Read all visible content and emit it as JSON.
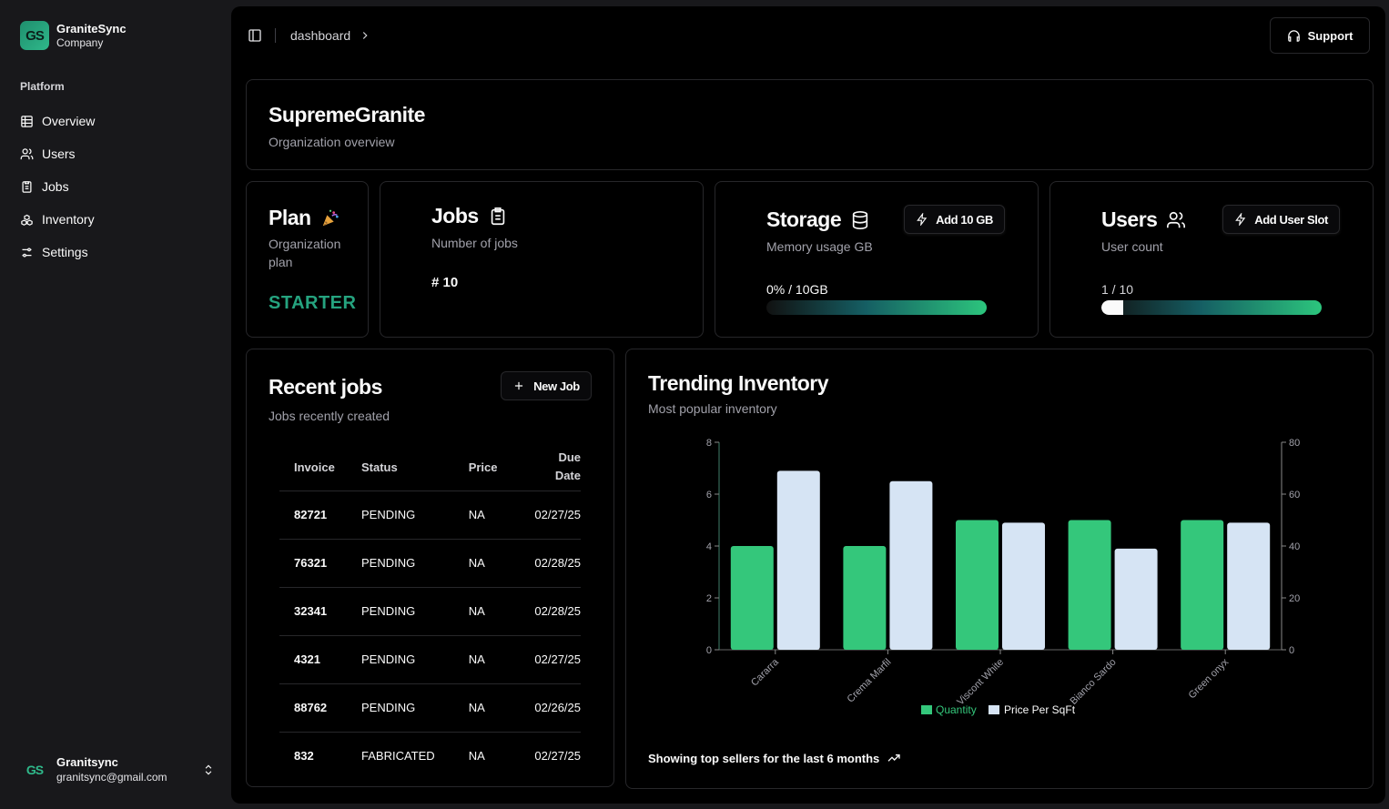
{
  "sidebar": {
    "brand_logo": "GS",
    "brand_name": "GraniteSync",
    "brand_sub": "Company",
    "group_label": "Platform",
    "items": [
      {
        "label": "Overview",
        "icon": "table-icon"
      },
      {
        "label": "Users",
        "icon": "users-icon"
      },
      {
        "label": "Jobs",
        "icon": "clipboard-icon"
      },
      {
        "label": "Inventory",
        "icon": "boxes-icon"
      },
      {
        "label": "Settings",
        "icon": "sliders-icon"
      }
    ],
    "user": {
      "logo": "GS",
      "name": "Granitsync",
      "email": "granitsync@gmail.com"
    }
  },
  "header": {
    "breadcrumb": "dashboard",
    "support_label": "Support"
  },
  "org": {
    "title": "SupremeGranite",
    "subtitle": "Organization overview"
  },
  "plan": {
    "title": "Plan",
    "subtitle": "Organization plan",
    "value": "STARTER"
  },
  "jobs": {
    "title": "Jobs",
    "subtitle": "Number of jobs",
    "count": "# 10"
  },
  "storage": {
    "title": "Storage",
    "subtitle": "Memory usage GB",
    "add_label": "Add 10 GB",
    "usage": "0% / 10GB",
    "fraction": 0
  },
  "users": {
    "title": "Users",
    "subtitle": "User count",
    "add_label": "Add User Slot",
    "usage": "1 / 10",
    "fraction": 0.1
  },
  "recent": {
    "title": "Recent jobs",
    "subtitle": "Jobs recently created",
    "new_job_label": "New Job",
    "columns": {
      "invoice": "Invoice",
      "status": "Status",
      "price": "Price",
      "due_line1": "Due",
      "due_line2": "Date"
    },
    "rows": [
      {
        "invoice": "82721",
        "status": "PENDING",
        "price": "NA",
        "due": "02/27/25"
      },
      {
        "invoice": "76321",
        "status": "PENDING",
        "price": "NA",
        "due": "02/28/25"
      },
      {
        "invoice": "32341",
        "status": "PENDING",
        "price": "NA",
        "due": "02/28/25"
      },
      {
        "invoice": "4321",
        "status": "PENDING",
        "price": "NA",
        "due": "02/27/25"
      },
      {
        "invoice": "88762",
        "status": "PENDING",
        "price": "NA",
        "due": "02/26/25"
      },
      {
        "invoice": "832",
        "status": "FABRICATED",
        "price": "NA",
        "due": "02/27/25"
      }
    ]
  },
  "trending": {
    "title": "Trending Inventory",
    "subtitle": "Most popular inventory",
    "footer": "Showing top sellers for the last 6 months"
  },
  "chart_data": {
    "type": "bar",
    "categories": [
      "Cararra",
      "Crema Marfil",
      "Viscont White",
      "Bianco Sardo",
      "Green onyx"
    ],
    "series": [
      {
        "name": "Quantity",
        "axis": "left",
        "color": "#34c77b",
        "values": [
          4,
          4,
          5,
          5,
          5
        ]
      },
      {
        "name": "Price Per SqFt",
        "axis": "right",
        "color": "#d6e4f4",
        "values": [
          69,
          65,
          49,
          39,
          49
        ]
      }
    ],
    "ylim_left": [
      0,
      8
    ],
    "yticks_left": [
      0,
      2,
      4,
      6,
      8
    ],
    "ylim_right": [
      0,
      80
    ],
    "yticks_right": [
      0,
      20,
      40,
      60,
      80
    ],
    "legend_position": "bottom",
    "grid": false
  }
}
